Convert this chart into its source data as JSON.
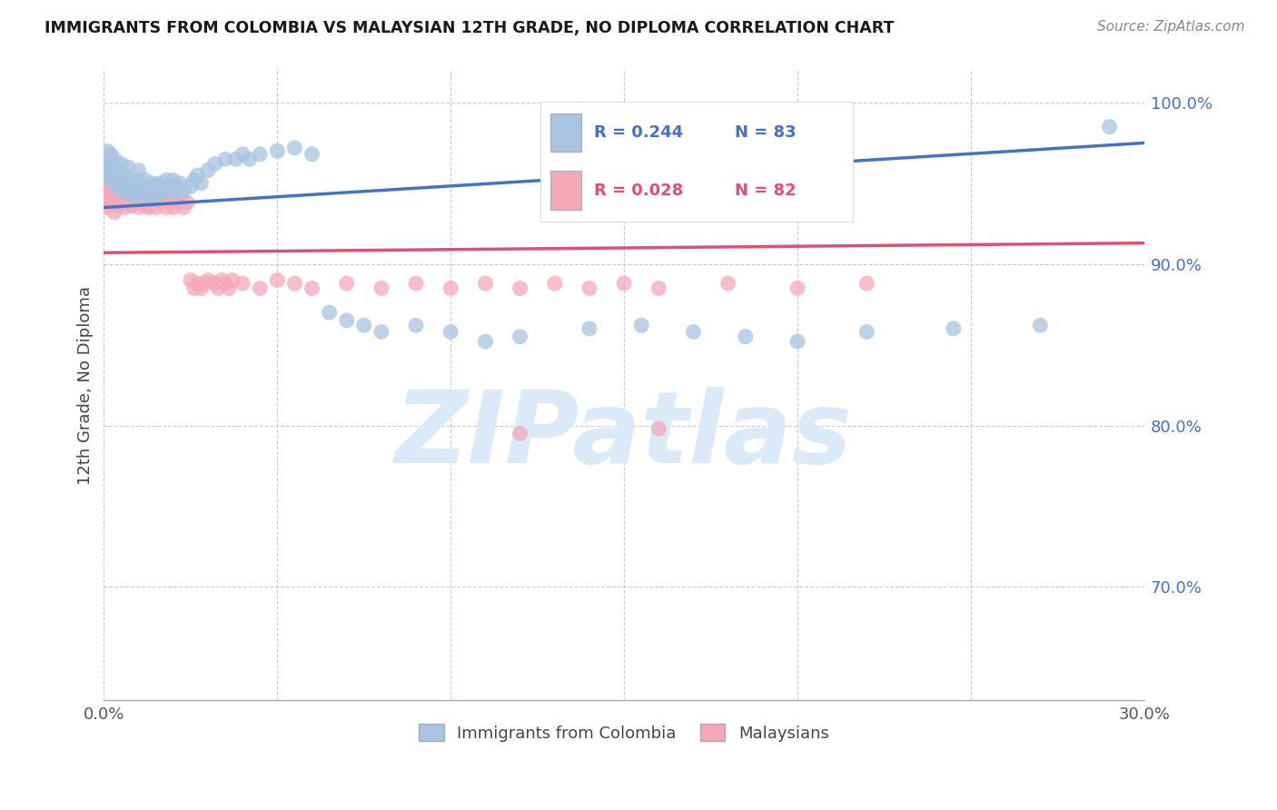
{
  "title": "IMMIGRANTS FROM COLOMBIA VS MALAYSIAN 12TH GRADE, NO DIPLOMA CORRELATION CHART",
  "source": "Source: ZipAtlas.com",
  "ylabel": "12th Grade, No Diploma",
  "xmin": 0.0,
  "xmax": 0.3,
  "ymin": 0.63,
  "ymax": 1.02,
  "ytick_labels": [
    "100.0%",
    "90.0%",
    "80.0%",
    "70.0%"
  ],
  "ytick_values": [
    1.0,
    0.9,
    0.8,
    0.7
  ],
  "xtick_values": [
    0.0,
    0.05,
    0.1,
    0.15,
    0.2,
    0.25,
    0.3
  ],
  "colombia_R": 0.244,
  "colombia_N": 83,
  "malaysia_R": 0.028,
  "malaysia_N": 82,
  "colombia_color": "#a8c4e0",
  "malaysia_color": "#f4a8b8",
  "colombia_line_color": "#4472c4",
  "malaysia_line_color": "#e05070",
  "colombia_scatter_x": [
    0.001,
    0.001,
    0.001,
    0.001,
    0.002,
    0.002,
    0.002,
    0.003,
    0.003,
    0.003,
    0.004,
    0.004,
    0.004,
    0.005,
    0.005,
    0.005,
    0.006,
    0.006,
    0.007,
    0.007,
    0.008,
    0.008,
    0.009,
    0.009,
    0.01,
    0.01,
    0.01,
    0.011,
    0.012,
    0.012,
    0.013,
    0.013,
    0.014,
    0.015,
    0.015,
    0.016,
    0.016,
    0.017,
    0.018,
    0.018,
    0.019,
    0.02,
    0.02,
    0.021,
    0.022,
    0.023,
    0.025,
    0.026,
    0.027,
    0.028,
    0.03,
    0.032,
    0.035,
    0.038,
    0.04,
    0.042,
    0.045,
    0.05,
    0.055,
    0.06,
    0.065,
    0.07,
    0.075,
    0.08,
    0.09,
    0.1,
    0.11,
    0.12,
    0.14,
    0.155,
    0.17,
    0.185,
    0.2,
    0.22,
    0.245,
    0.27,
    0.29,
    0.001,
    0.002,
    0.003,
    0.005,
    0.007,
    0.01
  ],
  "colombia_scatter_y": [
    0.965,
    0.96,
    0.955,
    0.958,
    0.962,
    0.958,
    0.952,
    0.96,
    0.955,
    0.95,
    0.958,
    0.952,
    0.948,
    0.955,
    0.95,
    0.945,
    0.955,
    0.948,
    0.952,
    0.945,
    0.948,
    0.942,
    0.95,
    0.945,
    0.952,
    0.946,
    0.94,
    0.948,
    0.952,
    0.945,
    0.948,
    0.942,
    0.95,
    0.948,
    0.942,
    0.95,
    0.945,
    0.948,
    0.952,
    0.945,
    0.948,
    0.952,
    0.945,
    0.948,
    0.95,
    0.945,
    0.948,
    0.952,
    0.955,
    0.95,
    0.958,
    0.962,
    0.965,
    0.965,
    0.968,
    0.965,
    0.968,
    0.97,
    0.972,
    0.968,
    0.87,
    0.865,
    0.862,
    0.858,
    0.862,
    0.858,
    0.852,
    0.855,
    0.86,
    0.862,
    0.858,
    0.855,
    0.852,
    0.858,
    0.86,
    0.862,
    0.985,
    0.97,
    0.968,
    0.965,
    0.962,
    0.96,
    0.958
  ],
  "malaysia_scatter_x": [
    0.001,
    0.001,
    0.001,
    0.001,
    0.001,
    0.002,
    0.002,
    0.002,
    0.003,
    0.003,
    0.003,
    0.003,
    0.004,
    0.004,
    0.004,
    0.005,
    0.005,
    0.005,
    0.006,
    0.006,
    0.006,
    0.007,
    0.007,
    0.008,
    0.008,
    0.009,
    0.009,
    0.01,
    0.01,
    0.01,
    0.011,
    0.011,
    0.012,
    0.012,
    0.013,
    0.013,
    0.014,
    0.015,
    0.015,
    0.016,
    0.017,
    0.018,
    0.018,
    0.019,
    0.02,
    0.02,
    0.021,
    0.022,
    0.023,
    0.024,
    0.025,
    0.026,
    0.027,
    0.028,
    0.029,
    0.03,
    0.032,
    0.033,
    0.034,
    0.035,
    0.036,
    0.037,
    0.04,
    0.045,
    0.05,
    0.055,
    0.06,
    0.07,
    0.08,
    0.09,
    0.1,
    0.11,
    0.12,
    0.13,
    0.14,
    0.15,
    0.16,
    0.18,
    0.2,
    0.22,
    0.12,
    0.16
  ],
  "malaysia_scatter_y": [
    0.955,
    0.95,
    0.945,
    0.94,
    0.935,
    0.955,
    0.948,
    0.94,
    0.952,
    0.945,
    0.938,
    0.932,
    0.948,
    0.942,
    0.936,
    0.95,
    0.944,
    0.938,
    0.948,
    0.942,
    0.935,
    0.945,
    0.938,
    0.942,
    0.936,
    0.945,
    0.938,
    0.948,
    0.942,
    0.935,
    0.945,
    0.938,
    0.942,
    0.936,
    0.942,
    0.935,
    0.94,
    0.942,
    0.935,
    0.938,
    0.94,
    0.942,
    0.935,
    0.938,
    0.94,
    0.935,
    0.938,
    0.942,
    0.935,
    0.938,
    0.89,
    0.885,
    0.888,
    0.885,
    0.888,
    0.89,
    0.888,
    0.885,
    0.89,
    0.888,
    0.885,
    0.89,
    0.888,
    0.885,
    0.89,
    0.888,
    0.885,
    0.888,
    0.885,
    0.888,
    0.885,
    0.888,
    0.885,
    0.888,
    0.885,
    0.888,
    0.885,
    0.888,
    0.885,
    0.888,
    0.795,
    0.798
  ],
  "watermark": "ZIPatlas",
  "watermark_color": "#daeaf8",
  "legend_colombia_color": "#a8c4e0",
  "legend_malaysia_color": "#f4a8b8",
  "legend_text_color": "#4472c4",
  "legend_pink_text_color": "#e05070"
}
